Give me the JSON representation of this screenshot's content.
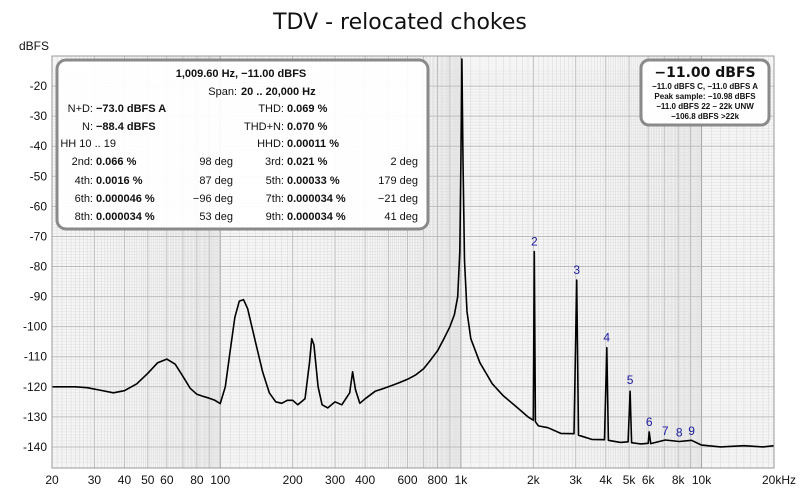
{
  "chart_data": {
    "type": "line",
    "title": "TDV - relocated chokes",
    "ylabel": "dBFS",
    "xlabel": "",
    "x_scale": "log",
    "xlim": [
      20,
      20000
    ],
    "ylim": [
      -147,
      -10
    ],
    "grid": true,
    "x_tick_labels": [
      {
        "x": 20,
        "label": "20"
      },
      {
        "x": 30,
        "label": "30"
      },
      {
        "x": 40,
        "label": "40"
      },
      {
        "x": 50,
        "label": "50"
      },
      {
        "x": 60,
        "label": "60"
      },
      {
        "x": 80,
        "label": "80"
      },
      {
        "x": 100,
        "label": "100"
      },
      {
        "x": 200,
        "label": "200"
      },
      {
        "x": 300,
        "label": "300"
      },
      {
        "x": 400,
        "label": "400"
      },
      {
        "x": 600,
        "label": "600"
      },
      {
        "x": 800,
        "label": "800"
      },
      {
        "x": 1000,
        "label": "1k"
      },
      {
        "x": 2000,
        "label": "2k"
      },
      {
        "x": 3000,
        "label": "3k"
      },
      {
        "x": 4000,
        "label": "4k"
      },
      {
        "x": 5000,
        "label": "5k"
      },
      {
        "x": 6000,
        "label": "6k"
      },
      {
        "x": 8000,
        "label": "8k"
      },
      {
        "x": 10000,
        "label": "10k"
      },
      {
        "x": 20000,
        "label": "20kHz"
      }
    ],
    "y_tick_labels": [
      {
        "y": -20,
        "label": "-20"
      },
      {
        "y": -30,
        "label": "-30"
      },
      {
        "y": -40,
        "label": "-40"
      },
      {
        "y": -50,
        "label": "-50"
      },
      {
        "y": -60,
        "label": "-60"
      },
      {
        "y": -70,
        "label": "-70"
      },
      {
        "y": -80,
        "label": "-80"
      },
      {
        "y": -90,
        "label": "-90"
      },
      {
        "y": -100,
        "label": "-100"
      },
      {
        "y": -110,
        "label": "-110"
      },
      {
        "y": -120,
        "label": "-120"
      },
      {
        "y": -130,
        "label": "-130"
      },
      {
        "y": -140,
        "label": "-140"
      }
    ],
    "series": [
      {
        "color": "#000000",
        "points": [
          [
            20,
            -120
          ],
          [
            25,
            -120
          ],
          [
            28,
            -120.3
          ],
          [
            32,
            -121.2
          ],
          [
            36,
            -122
          ],
          [
            40,
            -121.3
          ],
          [
            45,
            -119
          ],
          [
            50,
            -115.5
          ],
          [
            55,
            -112
          ],
          [
            60,
            -110.8
          ],
          [
            65,
            -112.5
          ],
          [
            70,
            -116.5
          ],
          [
            75,
            -120.5
          ],
          [
            80,
            -122.5
          ],
          [
            85,
            -123.2
          ],
          [
            90,
            -123.8
          ],
          [
            95,
            -124.5
          ],
          [
            100,
            -125.6
          ],
          [
            105,
            -120
          ],
          [
            110,
            -108
          ],
          [
            115,
            -97
          ],
          [
            120,
            -91.5
          ],
          [
            125,
            -91
          ],
          [
            130,
            -94
          ],
          [
            140,
            -105
          ],
          [
            150,
            -115
          ],
          [
            160,
            -122
          ],
          [
            170,
            -125
          ],
          [
            180,
            -125.5
          ],
          [
            190,
            -124.5
          ],
          [
            200,
            -124.5
          ],
          [
            210,
            -126
          ],
          [
            225,
            -124
          ],
          [
            235,
            -112
          ],
          [
            240,
            -104
          ],
          [
            245,
            -106
          ],
          [
            255,
            -120
          ],
          [
            265,
            -126
          ],
          [
            280,
            -127
          ],
          [
            300,
            -125
          ],
          [
            320,
            -126
          ],
          [
            345,
            -122
          ],
          [
            355,
            -115
          ],
          [
            365,
            -121
          ],
          [
            380,
            -125.5
          ],
          [
            400,
            -124
          ],
          [
            440,
            -121.5
          ],
          [
            480,
            -120.5
          ],
          [
            520,
            -119.5
          ],
          [
            560,
            -118.5
          ],
          [
            600,
            -117.5
          ],
          [
            650,
            -116
          ],
          [
            700,
            -114
          ],
          [
            750,
            -111
          ],
          [
            800,
            -108
          ],
          [
            850,
            -104
          ],
          [
            900,
            -100
          ],
          [
            940,
            -96
          ],
          [
            970,
            -90
          ],
          [
            990,
            -75
          ],
          [
            1000,
            -45
          ],
          [
            1009.6,
            -11
          ],
          [
            1020,
            -45
          ],
          [
            1035,
            -78
          ],
          [
            1060,
            -95
          ],
          [
            1100,
            -104
          ],
          [
            1200,
            -112
          ],
          [
            1350,
            -119
          ],
          [
            1500,
            -123
          ],
          [
            1700,
            -127
          ],
          [
            1900,
            -130
          ],
          [
            2000,
            -131.5
          ],
          [
            2019.2,
            -75
          ],
          [
            2040,
            -132
          ],
          [
            2100,
            -133
          ],
          [
            2300,
            -134
          ],
          [
            2600,
            -135.5
          ],
          [
            2950,
            -136
          ],
          [
            3028.8,
            -84.5
          ],
          [
            3080,
            -136.5
          ],
          [
            3500,
            -137.5
          ],
          [
            3950,
            -138
          ],
          [
            4038.4,
            -107
          ],
          [
            4100,
            -138.2
          ],
          [
            4600,
            -138.5
          ],
          [
            4950,
            -138.7
          ],
          [
            5048,
            -121.5
          ],
          [
            5120,
            -139
          ],
          [
            5600,
            -139
          ],
          [
            6000,
            -139.2
          ],
          [
            6057.6,
            -135
          ],
          [
            6150,
            -139.3
          ],
          [
            7067.2,
            -137.7
          ],
          [
            8076.8,
            -138.6
          ],
          [
            9086.4,
            -137.8
          ],
          [
            10000,
            -139.8
          ],
          [
            12000,
            -140
          ],
          [
            15000,
            -140
          ],
          [
            18000,
            -140
          ],
          [
            20000,
            -140
          ]
        ]
      }
    ],
    "harmonic_labels": [
      {
        "label": "2",
        "x": 2019.2,
        "y": -73
      },
      {
        "label": "3",
        "x": 3028.8,
        "y": -82.5
      },
      {
        "label": "4",
        "x": 4038.4,
        "y": -105
      },
      {
        "label": "5",
        "x": 5048,
        "y": -119
      },
      {
        "label": "6",
        "x": 6057.6,
        "y": -133
      },
      {
        "label": "7",
        "x": 7067.2,
        "y": -136
      },
      {
        "label": "8",
        "x": 8076.8,
        "y": -136.5
      },
      {
        "label": "9",
        "x": 9086.4,
        "y": -136
      }
    ]
  },
  "info_box": {
    "header": "1,009.60 Hz, −11.00 dBFS",
    "span_label": "Span:",
    "span_value": "20 .. 20,000 Hz",
    "nd_label": "N+D:",
    "nd_value": "−73.0 dBFS A",
    "thd_label": "THD:",
    "thd_value": "0.069 %",
    "n_label": "N:",
    "n_value": "−88.4 dBFS",
    "thdn_label": "THD+N:",
    "thdn_value": "0.070 %",
    "hh_label": "HH 10 .. 19",
    "hhd_label": "HHD:",
    "hhd_value": "0.00011 %",
    "harmonics": [
      {
        "label": "2nd:",
        "value": "0.066 %",
        "phase": "98 deg"
      },
      {
        "label": "3rd:",
        "value": "0.021 %",
        "phase": "2 deg"
      },
      {
        "label": "4th:",
        "value": "0.0016 %",
        "phase": "87 deg"
      },
      {
        "label": "5th:",
        "value": "0.00033 %",
        "phase": "179 deg"
      },
      {
        "label": "6th:",
        "value": "0.000046 %",
        "phase": "−96 deg"
      },
      {
        "label": "7th:",
        "value": "0.000034 %",
        "phase": "−21 deg"
      },
      {
        "label": "8th:",
        "value": "0.000034 %",
        "phase": "53 deg"
      },
      {
        "label": "9th:",
        "value": "0.000034 %",
        "phase": "41 deg"
      }
    ]
  },
  "level_box": {
    "main": "−11.00 dBFS",
    "lines": [
      "−11.0 dBFS C, −11.0 dBFS A",
      "Peak sample: −10.98 dBFS",
      "−11.0 dBFS 22 – 22k UNW",
      "−106.8 dBFS >22k"
    ]
  },
  "colors": {
    "plot_background": "#f5f5f5",
    "grid_minor": "#d8d8d8",
    "grid_major": "#bdbdbd",
    "trace": "#000000",
    "harmonic_label": "#1a1aa0",
    "box_border": "#7a7a7a"
  }
}
